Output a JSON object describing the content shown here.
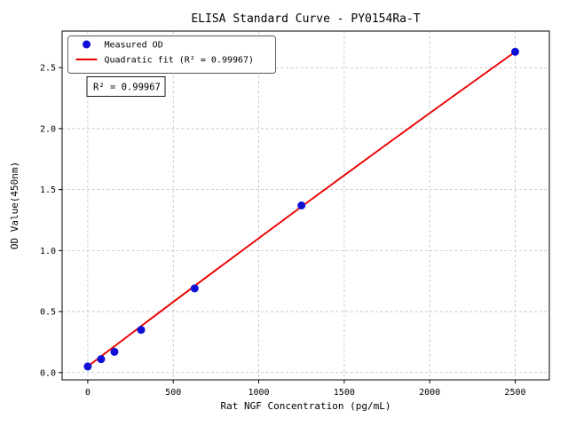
{
  "figure": {
    "title": "ELISA Standard Curve - PY0154Ra-T"
  },
  "chart_data": {
    "type": "scatter",
    "title": "ELISA Standard Curve - PY0154Ra-T",
    "xlabel": "Rat NGF Concentration (pg/mL)",
    "ylabel": "OD Value(450nm)",
    "xlim": [
      -150,
      2700
    ],
    "ylim": [
      -0.06,
      2.8
    ],
    "xticks": [
      0,
      500,
      1000,
      1500,
      2000,
      2500
    ],
    "yticks": [
      0.0,
      0.5,
      1.0,
      1.5,
      2.0,
      2.5
    ],
    "grid": true,
    "legend": {
      "position": "upper-left",
      "entries": [
        "Measured OD",
        "Quadratic fit (R² = 0.99967)"
      ]
    },
    "annotation": "R² = 0.99967",
    "series": [
      {
        "name": "Measured OD",
        "type": "scatter",
        "color": "#0f0fd6",
        "x": [
          0,
          78,
          156,
          312,
          625,
          1250,
          2500
        ],
        "y": [
          0.05,
          0.11,
          0.17,
          0.35,
          0.69,
          1.37,
          2.63
        ]
      },
      {
        "name": "Quadratic fit (R² = 0.99967)",
        "type": "line",
        "color": "#ee0000",
        "x": [
          0,
          250,
          500,
          750,
          1000,
          1250,
          1500,
          1750,
          2000,
          2250,
          2500
        ],
        "y": [
          0.05,
          0.315,
          0.579,
          0.841,
          1.101,
          1.36,
          1.617,
          1.873,
          2.127,
          2.379,
          2.63
        ]
      }
    ]
  }
}
